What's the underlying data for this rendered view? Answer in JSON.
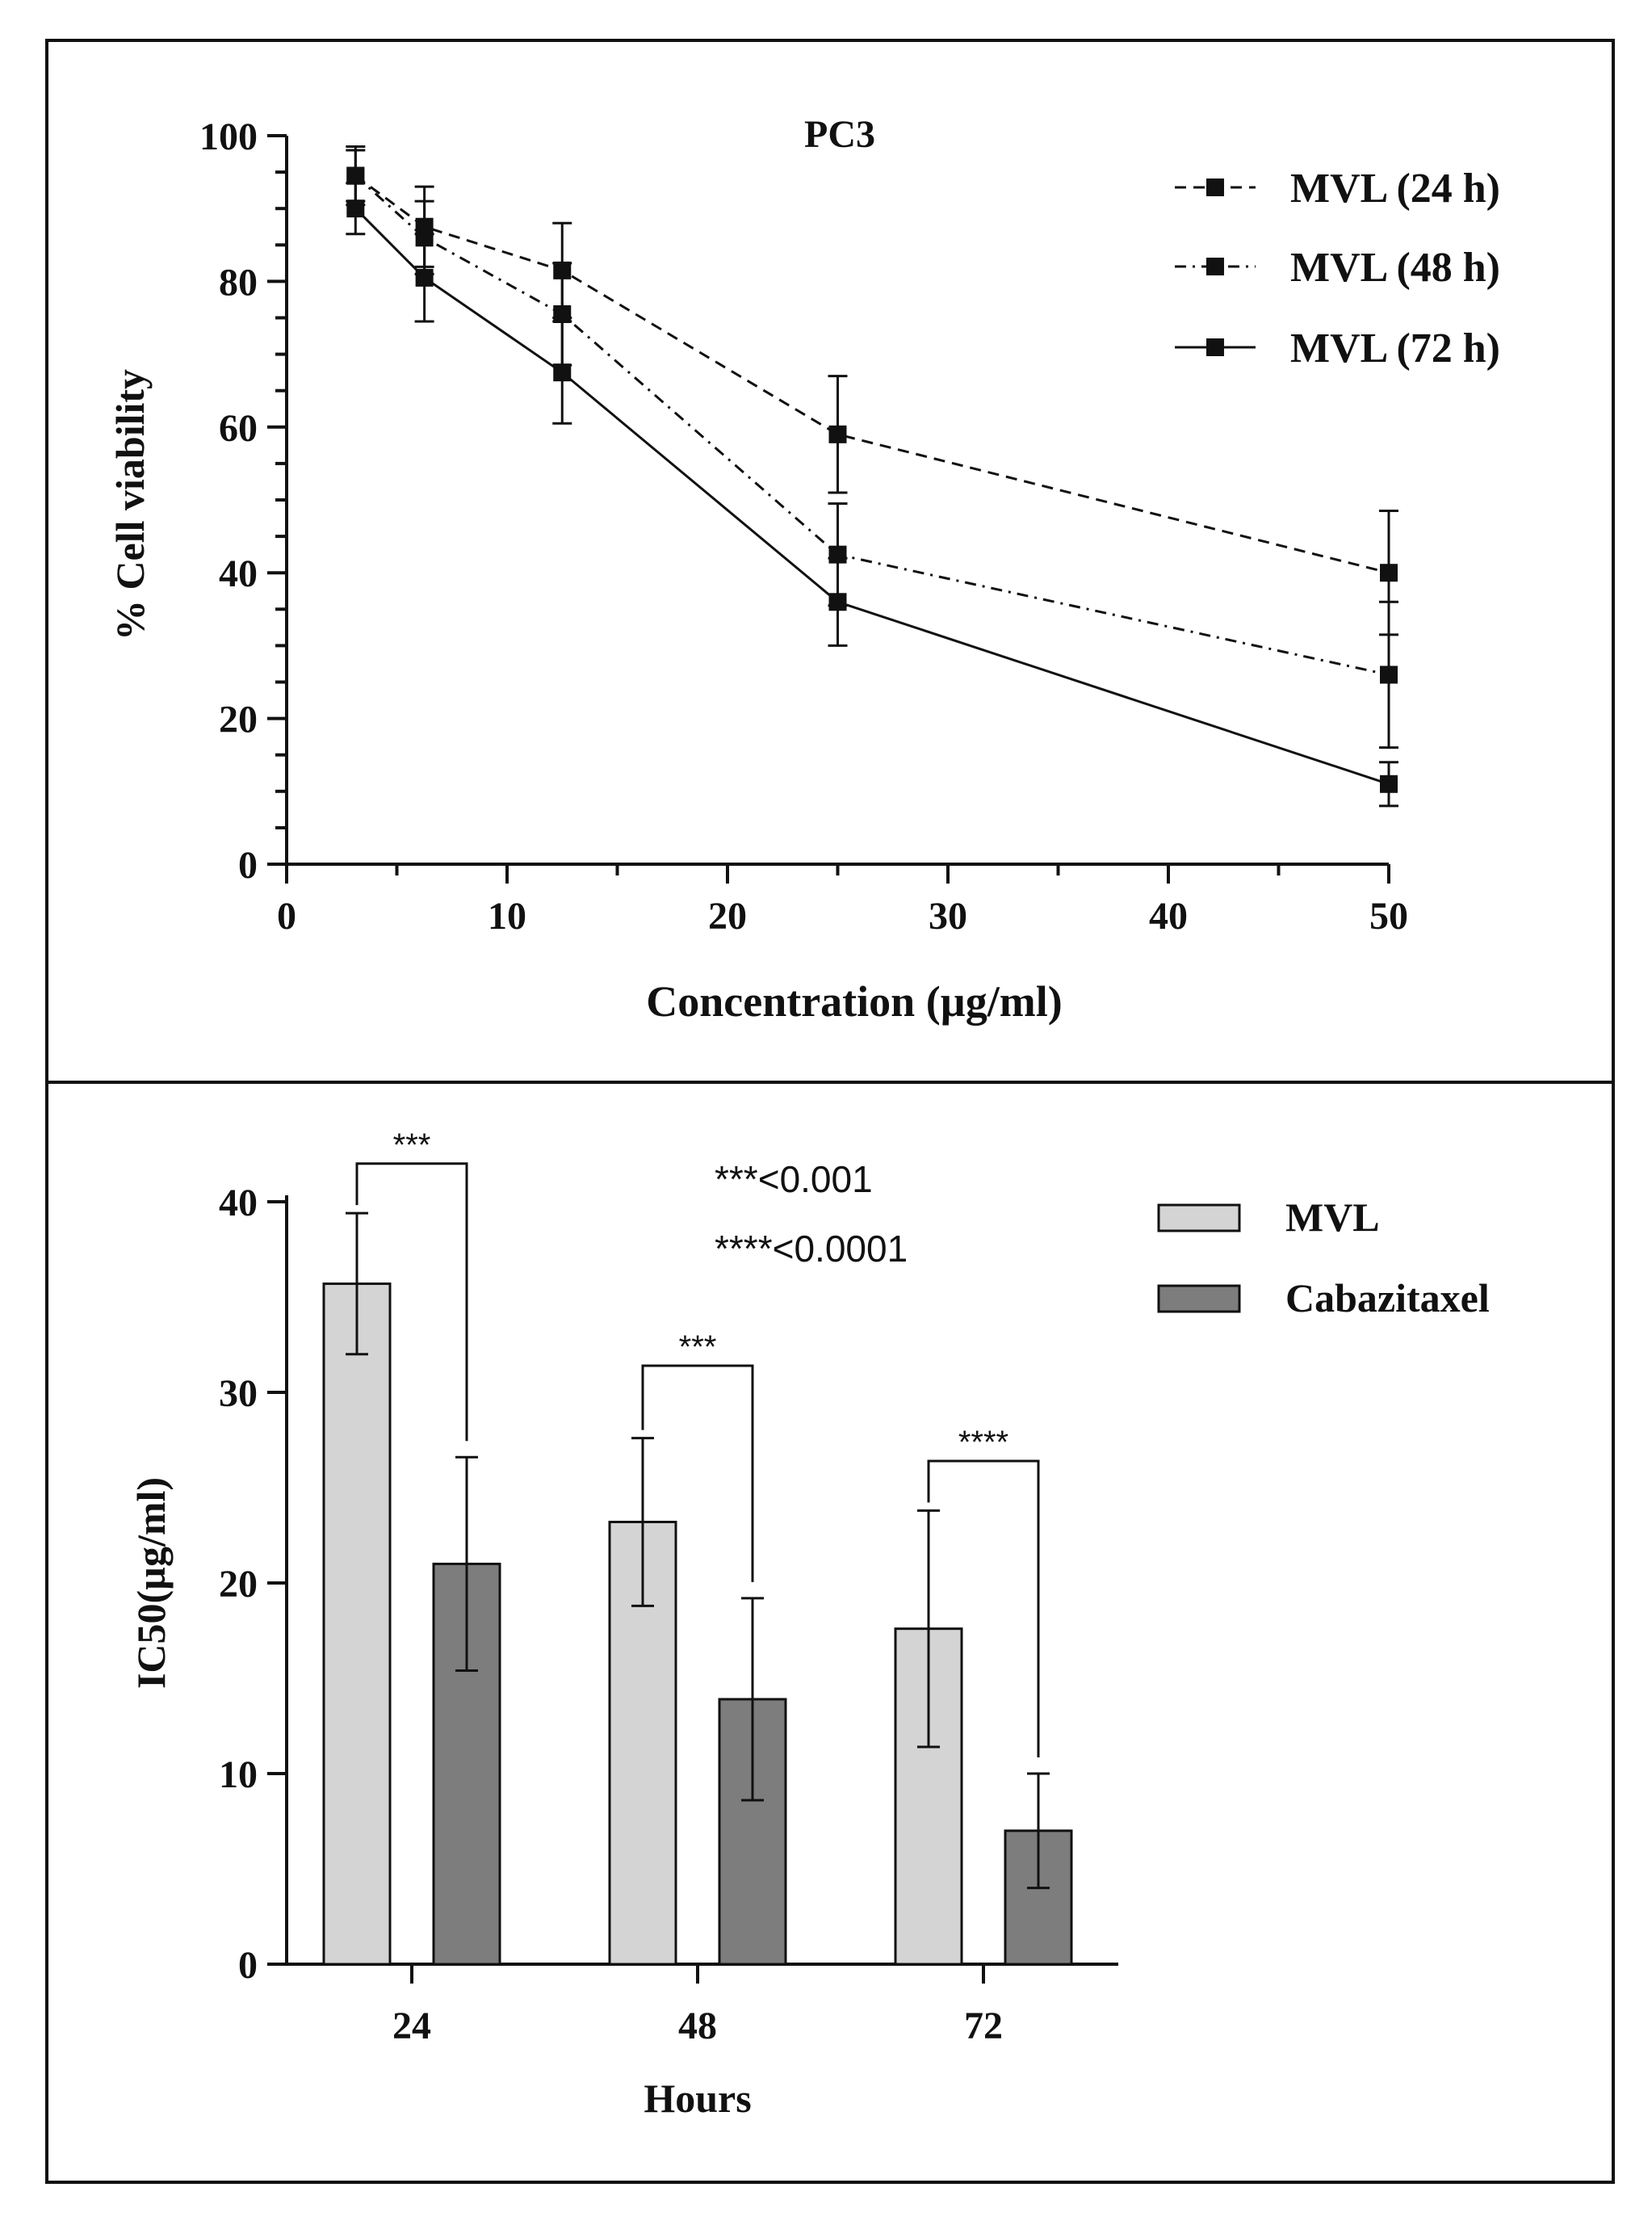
{
  "chart_data": [
    {
      "type": "line",
      "title": "PC3",
      "xlabel": "Concentration (µg/ml)",
      "ylabel": "% Cell viability",
      "xlim": [
        0,
        50
      ],
      "ylim": [
        0,
        100
      ],
      "xticks": [
        0,
        10,
        20,
        30,
        40,
        50
      ],
      "yticks": [
        0,
        20,
        40,
        60,
        80,
        100
      ],
      "grid": false,
      "legend_position": "top-right",
      "x": [
        3.125,
        6.25,
        12.5,
        25,
        50
      ],
      "series": [
        {
          "name": "MVL (24 h)",
          "style": "dashed",
          "values": [
            94.5,
            87.5,
            81.5,
            59.0,
            40.0
          ],
          "errors": [
            4.0,
            5.5,
            6.5,
            8.0,
            8.5
          ]
        },
        {
          "name": "MVL (48 h)",
          "style": "dashdot",
          "values": [
            94.5,
            86.0,
            75.5,
            42.5,
            26.0
          ],
          "errors": [
            3.5,
            5.0,
            7.0,
            7.0,
            10.0
          ]
        },
        {
          "name": "MVL (72 h)",
          "style": "solid",
          "values": [
            90.0,
            80.5,
            67.5,
            36.0,
            11.0
          ],
          "errors": [
            3.5,
            6.0,
            7.0,
            6.0,
            3.0
          ]
        }
      ]
    },
    {
      "type": "bar",
      "xlabel": "Hours",
      "ylabel": "IC50(µg/ml)",
      "ylim": [
        0,
        40
      ],
      "yticks": [
        0,
        10,
        20,
        30,
        40
      ],
      "categories": [
        "24",
        "48",
        "72"
      ],
      "legend_position": "top-right",
      "series": [
        {
          "name": "MVL",
          "color": "#d4d4d4",
          "values": [
            35.7,
            23.2,
            17.6
          ],
          "errors": [
            3.7,
            4.4,
            6.2
          ]
        },
        {
          "name": "Cabazitaxel",
          "color": "#7d7d7d",
          "values": [
            21.0,
            13.9,
            7.0
          ],
          "errors": [
            5.6,
            5.3,
            3.0
          ]
        }
      ],
      "significance": [
        {
          "category": "24",
          "label": "***",
          "bracket_top": 42.0
        },
        {
          "category": "48",
          "label": "***",
          "bracket_top": 31.4
        },
        {
          "category": "72",
          "label": "****",
          "bracket_top": 26.4
        }
      ],
      "annotations": [
        "***<0.001",
        "****<0.0001"
      ]
    }
  ]
}
